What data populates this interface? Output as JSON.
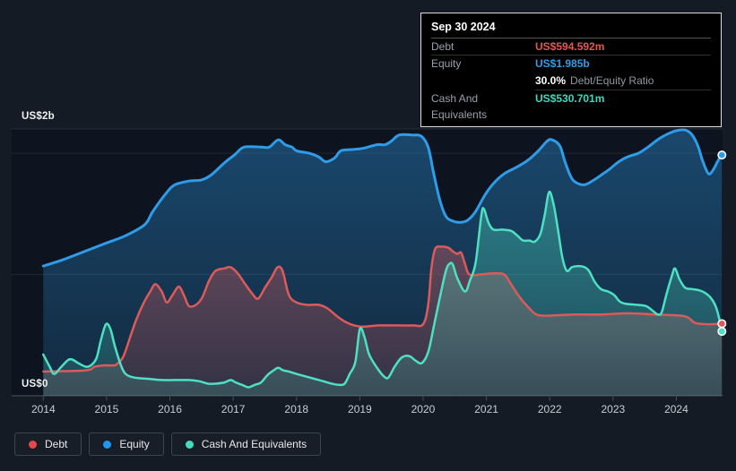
{
  "axes": {
    "y_top_label": "US$2b",
    "y_bottom_label": "US$0",
    "x_labels": [
      "2014",
      "2015",
      "2016",
      "2017",
      "2018",
      "2019",
      "2020",
      "2021",
      "2022",
      "2023",
      "2024"
    ]
  },
  "tooltip": {
    "date": "Sep 30 2024",
    "rows": [
      {
        "label": "Debt",
        "value": "US$594.592m",
        "color": "#e8564b"
      },
      {
        "label": "Equity",
        "value": "US$1.985b",
        "color": "#2d9fe8"
      },
      {
        "label": "Cash And Equivalents",
        "value": "US$530.701m",
        "color": "#3cd9c0"
      }
    ],
    "ratio": {
      "value": "30.0%",
      "label": "Debt/Equity Ratio"
    }
  },
  "legend": [
    {
      "label": "Debt",
      "color": "#e5484d"
    },
    {
      "label": "Equity",
      "color": "#2196ef"
    },
    {
      "label": "Cash And Equivalents",
      "color": "#43dcc1"
    }
  ],
  "chart_data": {
    "type": "area",
    "title": "Debt, Equity and Cash And Equivalents over time",
    "unit": "US$ billions",
    "x_range": [
      2013.5,
      2024.73
    ],
    "y_range_billions": [
      0,
      2.2
    ],
    "gridlines_billions": [
      0,
      1,
      2
    ],
    "grid": "on",
    "legend_position": "bottom-left",
    "colors": {
      "grid": "rgba(255,255,255,0.08)",
      "axis": "#3a434e",
      "plot_bg": "#0d1420",
      "tick": "#47515d"
    },
    "series": [
      {
        "name": "Equity",
        "color": "#2e9ce8",
        "points": [
          [
            2014.0,
            1.07
          ],
          [
            2014.3,
            1.12
          ],
          [
            2014.7,
            1.2
          ],
          [
            2015.0,
            1.26
          ],
          [
            2015.3,
            1.32
          ],
          [
            2015.6,
            1.41
          ],
          [
            2015.73,
            1.52
          ],
          [
            2015.94,
            1.67
          ],
          [
            2016.08,
            1.74
          ],
          [
            2016.3,
            1.77
          ],
          [
            2016.5,
            1.78
          ],
          [
            2016.65,
            1.82
          ],
          [
            2016.86,
            1.92
          ],
          [
            2017.03,
            1.99
          ],
          [
            2017.17,
            2.05
          ],
          [
            2017.45,
            2.05
          ],
          [
            2017.57,
            2.05
          ],
          [
            2017.71,
            2.11
          ],
          [
            2017.82,
            2.07
          ],
          [
            2017.93,
            2.05
          ],
          [
            2018.0,
            2.02
          ],
          [
            2018.2,
            2.0
          ],
          [
            2018.35,
            1.97
          ],
          [
            2018.46,
            1.93
          ],
          [
            2018.6,
            1.96
          ],
          [
            2018.7,
            2.02
          ],
          [
            2018.87,
            2.03
          ],
          [
            2019.05,
            2.04
          ],
          [
            2019.27,
            2.07
          ],
          [
            2019.4,
            2.07
          ],
          [
            2019.5,
            2.1
          ],
          [
            2019.62,
            2.15
          ],
          [
            2019.83,
            2.15
          ],
          [
            2019.97,
            2.14
          ],
          [
            2020.08,
            2.05
          ],
          [
            2020.16,
            1.85
          ],
          [
            2020.26,
            1.62
          ],
          [
            2020.36,
            1.48
          ],
          [
            2020.47,
            1.44
          ],
          [
            2020.6,
            1.43
          ],
          [
            2020.71,
            1.45
          ],
          [
            2020.83,
            1.52
          ],
          [
            2020.97,
            1.65
          ],
          [
            2021.11,
            1.75
          ],
          [
            2021.28,
            1.83
          ],
          [
            2021.46,
            1.88
          ],
          [
            2021.65,
            1.94
          ],
          [
            2021.82,
            2.02
          ],
          [
            2021.96,
            2.1
          ],
          [
            2022.04,
            2.11
          ],
          [
            2022.16,
            2.06
          ],
          [
            2022.24,
            1.93
          ],
          [
            2022.33,
            1.81
          ],
          [
            2022.41,
            1.76
          ],
          [
            2022.55,
            1.74
          ],
          [
            2022.7,
            1.78
          ],
          [
            2022.84,
            1.83
          ],
          [
            2022.95,
            1.87
          ],
          [
            2023.09,
            1.93
          ],
          [
            2023.23,
            1.97
          ],
          [
            2023.4,
            2.0
          ],
          [
            2023.55,
            2.05
          ],
          [
            2023.73,
            2.12
          ],
          [
            2023.91,
            2.17
          ],
          [
            2024.04,
            2.19
          ],
          [
            2024.15,
            2.19
          ],
          [
            2024.25,
            2.15
          ],
          [
            2024.34,
            2.06
          ],
          [
            2024.42,
            1.93
          ],
          [
            2024.51,
            1.83
          ],
          [
            2024.59,
            1.87
          ],
          [
            2024.66,
            1.94
          ],
          [
            2024.72,
            1.985
          ]
        ]
      },
      {
        "name": "Debt",
        "color": "#dc5a5a",
        "points": [
          [
            2014.0,
            0.2
          ],
          [
            2014.67,
            0.21
          ],
          [
            2014.81,
            0.24
          ],
          [
            2014.95,
            0.25
          ],
          [
            2015.1,
            0.25
          ],
          [
            2015.16,
            0.26
          ],
          [
            2015.26,
            0.32
          ],
          [
            2015.37,
            0.48
          ],
          [
            2015.47,
            0.63
          ],
          [
            2015.59,
            0.77
          ],
          [
            2015.69,
            0.86
          ],
          [
            2015.77,
            0.92
          ],
          [
            2015.87,
            0.86
          ],
          [
            2015.95,
            0.77
          ],
          [
            2016.04,
            0.83
          ],
          [
            2016.14,
            0.9
          ],
          [
            2016.22,
            0.83
          ],
          [
            2016.3,
            0.74
          ],
          [
            2016.41,
            0.75
          ],
          [
            2016.51,
            0.81
          ],
          [
            2016.62,
            0.95
          ],
          [
            2016.72,
            1.03
          ],
          [
            2016.86,
            1.05
          ],
          [
            2016.96,
            1.06
          ],
          [
            2017.07,
            1.01
          ],
          [
            2017.19,
            0.92
          ],
          [
            2017.29,
            0.85
          ],
          [
            2017.39,
            0.8
          ],
          [
            2017.5,
            0.89
          ],
          [
            2017.6,
            0.97
          ],
          [
            2017.7,
            1.06
          ],
          [
            2017.78,
            1.03
          ],
          [
            2017.88,
            0.83
          ],
          [
            2018.0,
            0.77
          ],
          [
            2018.16,
            0.75
          ],
          [
            2018.35,
            0.75
          ],
          [
            2018.49,
            0.72
          ],
          [
            2018.63,
            0.66
          ],
          [
            2018.77,
            0.61
          ],
          [
            2018.91,
            0.58
          ],
          [
            2019.06,
            0.57
          ],
          [
            2019.3,
            0.58
          ],
          [
            2019.6,
            0.58
          ],
          [
            2019.83,
            0.58
          ],
          [
            2020.0,
            0.59
          ],
          [
            2020.08,
            0.75
          ],
          [
            2020.13,
            1.05
          ],
          [
            2020.19,
            1.21
          ],
          [
            2020.29,
            1.23
          ],
          [
            2020.4,
            1.22
          ],
          [
            2020.47,
            1.19
          ],
          [
            2020.54,
            1.17
          ],
          [
            2020.6,
            1.18
          ],
          [
            2020.66,
            1.09
          ],
          [
            2020.73,
            1.0
          ],
          [
            2020.9,
            1.0
          ],
          [
            2021.11,
            1.01
          ],
          [
            2021.28,
            1.0
          ],
          [
            2021.39,
            0.92
          ],
          [
            2021.53,
            0.81
          ],
          [
            2021.68,
            0.72
          ],
          [
            2021.79,
            0.67
          ],
          [
            2021.96,
            0.66
          ],
          [
            2022.38,
            0.67
          ],
          [
            2022.81,
            0.67
          ],
          [
            2023.23,
            0.68
          ],
          [
            2023.66,
            0.67
          ],
          [
            2024.08,
            0.66
          ],
          [
            2024.2,
            0.64
          ],
          [
            2024.3,
            0.6
          ],
          [
            2024.5,
            0.59
          ],
          [
            2024.72,
            0.5946
          ]
        ]
      },
      {
        "name": "Cash And Equivalents",
        "color": "#4ee0c2",
        "points": [
          [
            2014.0,
            0.34
          ],
          [
            2014.1,
            0.24
          ],
          [
            2014.17,
            0.18
          ],
          [
            2014.27,
            0.23
          ],
          [
            2014.38,
            0.29
          ],
          [
            2014.45,
            0.3
          ],
          [
            2014.55,
            0.27
          ],
          [
            2014.67,
            0.24
          ],
          [
            2014.75,
            0.25
          ],
          [
            2014.84,
            0.31
          ],
          [
            2014.91,
            0.46
          ],
          [
            2014.99,
            0.59
          ],
          [
            2015.06,
            0.55
          ],
          [
            2015.13,
            0.41
          ],
          [
            2015.22,
            0.26
          ],
          [
            2015.3,
            0.18
          ],
          [
            2015.44,
            0.15
          ],
          [
            2015.66,
            0.14
          ],
          [
            2015.87,
            0.13
          ],
          [
            2016.08,
            0.13
          ],
          [
            2016.3,
            0.13
          ],
          [
            2016.46,
            0.12
          ],
          [
            2016.6,
            0.1
          ],
          [
            2016.72,
            0.1
          ],
          [
            2016.86,
            0.11
          ],
          [
            2016.96,
            0.13
          ],
          [
            2017.04,
            0.11
          ],
          [
            2017.14,
            0.09
          ],
          [
            2017.24,
            0.07
          ],
          [
            2017.34,
            0.09
          ],
          [
            2017.44,
            0.11
          ],
          [
            2017.54,
            0.17
          ],
          [
            2017.64,
            0.21
          ],
          [
            2017.71,
            0.23
          ],
          [
            2017.79,
            0.21
          ],
          [
            2017.88,
            0.2
          ],
          [
            2018.0,
            0.18
          ],
          [
            2018.14,
            0.16
          ],
          [
            2018.28,
            0.14
          ],
          [
            2018.42,
            0.12
          ],
          [
            2018.56,
            0.1
          ],
          [
            2018.67,
            0.09
          ],
          [
            2018.76,
            0.1
          ],
          [
            2018.84,
            0.18
          ],
          [
            2018.93,
            0.28
          ],
          [
            2019.0,
            0.55
          ],
          [
            2019.07,
            0.49
          ],
          [
            2019.14,
            0.35
          ],
          [
            2019.21,
            0.28
          ],
          [
            2019.3,
            0.21
          ],
          [
            2019.38,
            0.16
          ],
          [
            2019.45,
            0.15
          ],
          [
            2019.55,
            0.24
          ],
          [
            2019.65,
            0.31
          ],
          [
            2019.74,
            0.33
          ],
          [
            2019.81,
            0.32
          ],
          [
            2019.88,
            0.29
          ],
          [
            2019.98,
            0.27
          ],
          [
            2020.08,
            0.36
          ],
          [
            2020.16,
            0.55
          ],
          [
            2020.26,
            0.8
          ],
          [
            2020.36,
            1.03
          ],
          [
            2020.42,
            1.09
          ],
          [
            2020.47,
            1.08
          ],
          [
            2020.54,
            0.97
          ],
          [
            2020.66,
            0.86
          ],
          [
            2020.74,
            0.95
          ],
          [
            2020.83,
            1.1
          ],
          [
            2020.92,
            1.49
          ],
          [
            2020.96,
            1.54
          ],
          [
            2021.03,
            1.43
          ],
          [
            2021.11,
            1.37
          ],
          [
            2021.25,
            1.37
          ],
          [
            2021.39,
            1.36
          ],
          [
            2021.49,
            1.32
          ],
          [
            2021.58,
            1.28
          ],
          [
            2021.68,
            1.28
          ],
          [
            2021.76,
            1.27
          ],
          [
            2021.85,
            1.33
          ],
          [
            2021.92,
            1.49
          ],
          [
            2021.99,
            1.68
          ],
          [
            2022.06,
            1.58
          ],
          [
            2022.13,
            1.37
          ],
          [
            2022.2,
            1.14
          ],
          [
            2022.27,
            1.03
          ],
          [
            2022.35,
            1.06
          ],
          [
            2022.45,
            1.07
          ],
          [
            2022.55,
            1.06
          ],
          [
            2022.62,
            1.03
          ],
          [
            2022.71,
            0.94
          ],
          [
            2022.81,
            0.88
          ],
          [
            2022.92,
            0.86
          ],
          [
            2023.02,
            0.83
          ],
          [
            2023.1,
            0.78
          ],
          [
            2023.19,
            0.76
          ],
          [
            2023.37,
            0.75
          ],
          [
            2023.52,
            0.74
          ],
          [
            2023.63,
            0.7
          ],
          [
            2023.71,
            0.67
          ],
          [
            2023.77,
            0.69
          ],
          [
            2023.84,
            0.83
          ],
          [
            2023.93,
            0.99
          ],
          [
            2023.98,
            1.05
          ],
          [
            2024.05,
            0.96
          ],
          [
            2024.14,
            0.89
          ],
          [
            2024.25,
            0.88
          ],
          [
            2024.36,
            0.87
          ],
          [
            2024.45,
            0.85
          ],
          [
            2024.54,
            0.81
          ],
          [
            2024.62,
            0.74
          ],
          [
            2024.68,
            0.63
          ],
          [
            2024.72,
            0.531
          ]
        ]
      }
    ]
  }
}
